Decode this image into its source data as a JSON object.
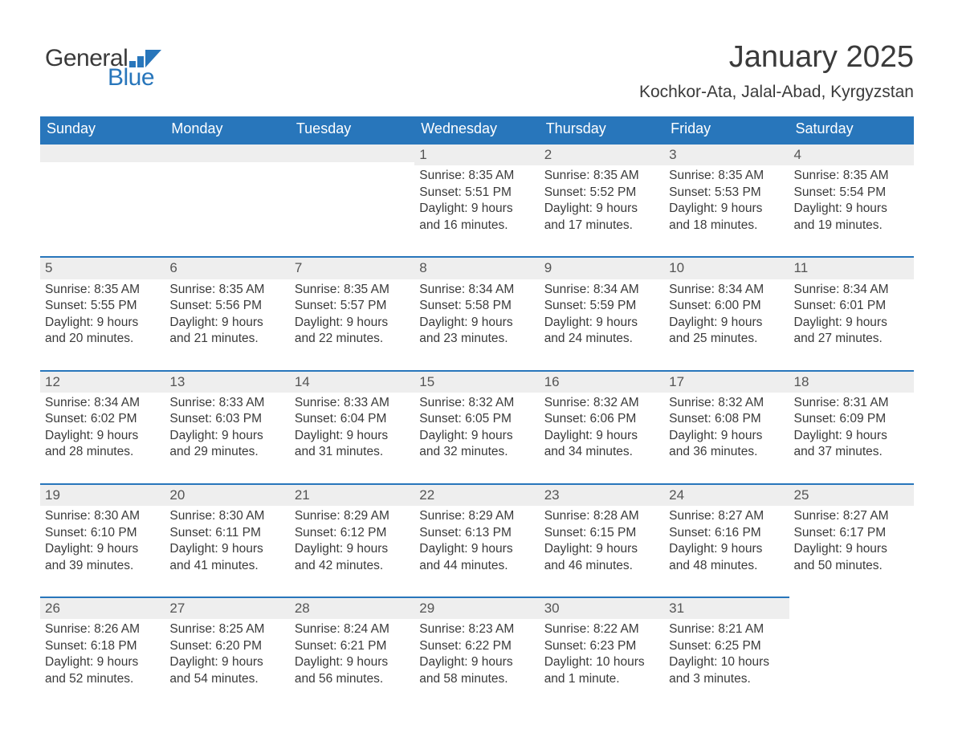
{
  "logo": {
    "text1": "General",
    "text2": "Blue",
    "color1": "#3a3a3a",
    "color2": "#2876bb"
  },
  "header": {
    "title": "January 2025",
    "subtitle": "Kochkor-Ata, Jalal-Abad, Kyrgyzstan"
  },
  "colors": {
    "header_bg": "#2876bb",
    "header_text": "#ffffff",
    "band_bg": "#eeeeee",
    "rule": "#2876bb",
    "body_text": "#3a3a3a"
  },
  "day_headers": [
    "Sunday",
    "Monday",
    "Tuesday",
    "Wednesday",
    "Thursday",
    "Friday",
    "Saturday"
  ],
  "weeks": [
    [
      {
        "day": "",
        "sunrise": "",
        "sunset": "",
        "daylight": ""
      },
      {
        "day": "",
        "sunrise": "",
        "sunset": "",
        "daylight": ""
      },
      {
        "day": "",
        "sunrise": "",
        "sunset": "",
        "daylight": ""
      },
      {
        "day": "1",
        "sunrise": "Sunrise: 8:35 AM",
        "sunset": "Sunset: 5:51 PM",
        "daylight": "Daylight: 9 hours and 16 minutes."
      },
      {
        "day": "2",
        "sunrise": "Sunrise: 8:35 AM",
        "sunset": "Sunset: 5:52 PM",
        "daylight": "Daylight: 9 hours and 17 minutes."
      },
      {
        "day": "3",
        "sunrise": "Sunrise: 8:35 AM",
        "sunset": "Sunset: 5:53 PM",
        "daylight": "Daylight: 9 hours and 18 minutes."
      },
      {
        "day": "4",
        "sunrise": "Sunrise: 8:35 AM",
        "sunset": "Sunset: 5:54 PM",
        "daylight": "Daylight: 9 hours and 19 minutes."
      }
    ],
    [
      {
        "day": "5",
        "sunrise": "Sunrise: 8:35 AM",
        "sunset": "Sunset: 5:55 PM",
        "daylight": "Daylight: 9 hours and 20 minutes."
      },
      {
        "day": "6",
        "sunrise": "Sunrise: 8:35 AM",
        "sunset": "Sunset: 5:56 PM",
        "daylight": "Daylight: 9 hours and 21 minutes."
      },
      {
        "day": "7",
        "sunrise": "Sunrise: 8:35 AM",
        "sunset": "Sunset: 5:57 PM",
        "daylight": "Daylight: 9 hours and 22 minutes."
      },
      {
        "day": "8",
        "sunrise": "Sunrise: 8:34 AM",
        "sunset": "Sunset: 5:58 PM",
        "daylight": "Daylight: 9 hours and 23 minutes."
      },
      {
        "day": "9",
        "sunrise": "Sunrise: 8:34 AM",
        "sunset": "Sunset: 5:59 PM",
        "daylight": "Daylight: 9 hours and 24 minutes."
      },
      {
        "day": "10",
        "sunrise": "Sunrise: 8:34 AM",
        "sunset": "Sunset: 6:00 PM",
        "daylight": "Daylight: 9 hours and 25 minutes."
      },
      {
        "day": "11",
        "sunrise": "Sunrise: 8:34 AM",
        "sunset": "Sunset: 6:01 PM",
        "daylight": "Daylight: 9 hours and 27 minutes."
      }
    ],
    [
      {
        "day": "12",
        "sunrise": "Sunrise: 8:34 AM",
        "sunset": "Sunset: 6:02 PM",
        "daylight": "Daylight: 9 hours and 28 minutes."
      },
      {
        "day": "13",
        "sunrise": "Sunrise: 8:33 AM",
        "sunset": "Sunset: 6:03 PM",
        "daylight": "Daylight: 9 hours and 29 minutes."
      },
      {
        "day": "14",
        "sunrise": "Sunrise: 8:33 AM",
        "sunset": "Sunset: 6:04 PM",
        "daylight": "Daylight: 9 hours and 31 minutes."
      },
      {
        "day": "15",
        "sunrise": "Sunrise: 8:32 AM",
        "sunset": "Sunset: 6:05 PM",
        "daylight": "Daylight: 9 hours and 32 minutes."
      },
      {
        "day": "16",
        "sunrise": "Sunrise: 8:32 AM",
        "sunset": "Sunset: 6:06 PM",
        "daylight": "Daylight: 9 hours and 34 minutes."
      },
      {
        "day": "17",
        "sunrise": "Sunrise: 8:32 AM",
        "sunset": "Sunset: 6:08 PM",
        "daylight": "Daylight: 9 hours and 36 minutes."
      },
      {
        "day": "18",
        "sunrise": "Sunrise: 8:31 AM",
        "sunset": "Sunset: 6:09 PM",
        "daylight": "Daylight: 9 hours and 37 minutes."
      }
    ],
    [
      {
        "day": "19",
        "sunrise": "Sunrise: 8:30 AM",
        "sunset": "Sunset: 6:10 PM",
        "daylight": "Daylight: 9 hours and 39 minutes."
      },
      {
        "day": "20",
        "sunrise": "Sunrise: 8:30 AM",
        "sunset": "Sunset: 6:11 PM",
        "daylight": "Daylight: 9 hours and 41 minutes."
      },
      {
        "day": "21",
        "sunrise": "Sunrise: 8:29 AM",
        "sunset": "Sunset: 6:12 PM",
        "daylight": "Daylight: 9 hours and 42 minutes."
      },
      {
        "day": "22",
        "sunrise": "Sunrise: 8:29 AM",
        "sunset": "Sunset: 6:13 PM",
        "daylight": "Daylight: 9 hours and 44 minutes."
      },
      {
        "day": "23",
        "sunrise": "Sunrise: 8:28 AM",
        "sunset": "Sunset: 6:15 PM",
        "daylight": "Daylight: 9 hours and 46 minutes."
      },
      {
        "day": "24",
        "sunrise": "Sunrise: 8:27 AM",
        "sunset": "Sunset: 6:16 PM",
        "daylight": "Daylight: 9 hours and 48 minutes."
      },
      {
        "day": "25",
        "sunrise": "Sunrise: 8:27 AM",
        "sunset": "Sunset: 6:17 PM",
        "daylight": "Daylight: 9 hours and 50 minutes."
      }
    ],
    [
      {
        "day": "26",
        "sunrise": "Sunrise: 8:26 AM",
        "sunset": "Sunset: 6:18 PM",
        "daylight": "Daylight: 9 hours and 52 minutes."
      },
      {
        "day": "27",
        "sunrise": "Sunrise: 8:25 AM",
        "sunset": "Sunset: 6:20 PM",
        "daylight": "Daylight: 9 hours and 54 minutes."
      },
      {
        "day": "28",
        "sunrise": "Sunrise: 8:24 AM",
        "sunset": "Sunset: 6:21 PM",
        "daylight": "Daylight: 9 hours and 56 minutes."
      },
      {
        "day": "29",
        "sunrise": "Sunrise: 8:23 AM",
        "sunset": "Sunset: 6:22 PM",
        "daylight": "Daylight: 9 hours and 58 minutes."
      },
      {
        "day": "30",
        "sunrise": "Sunrise: 8:22 AM",
        "sunset": "Sunset: 6:23 PM",
        "daylight": "Daylight: 10 hours and 1 minute."
      },
      {
        "day": "31",
        "sunrise": "Sunrise: 8:21 AM",
        "sunset": "Sunset: 6:25 PM",
        "daylight": "Daylight: 10 hours and 3 minutes."
      },
      {
        "day": "",
        "sunrise": "",
        "sunset": "",
        "daylight": ""
      }
    ]
  ]
}
